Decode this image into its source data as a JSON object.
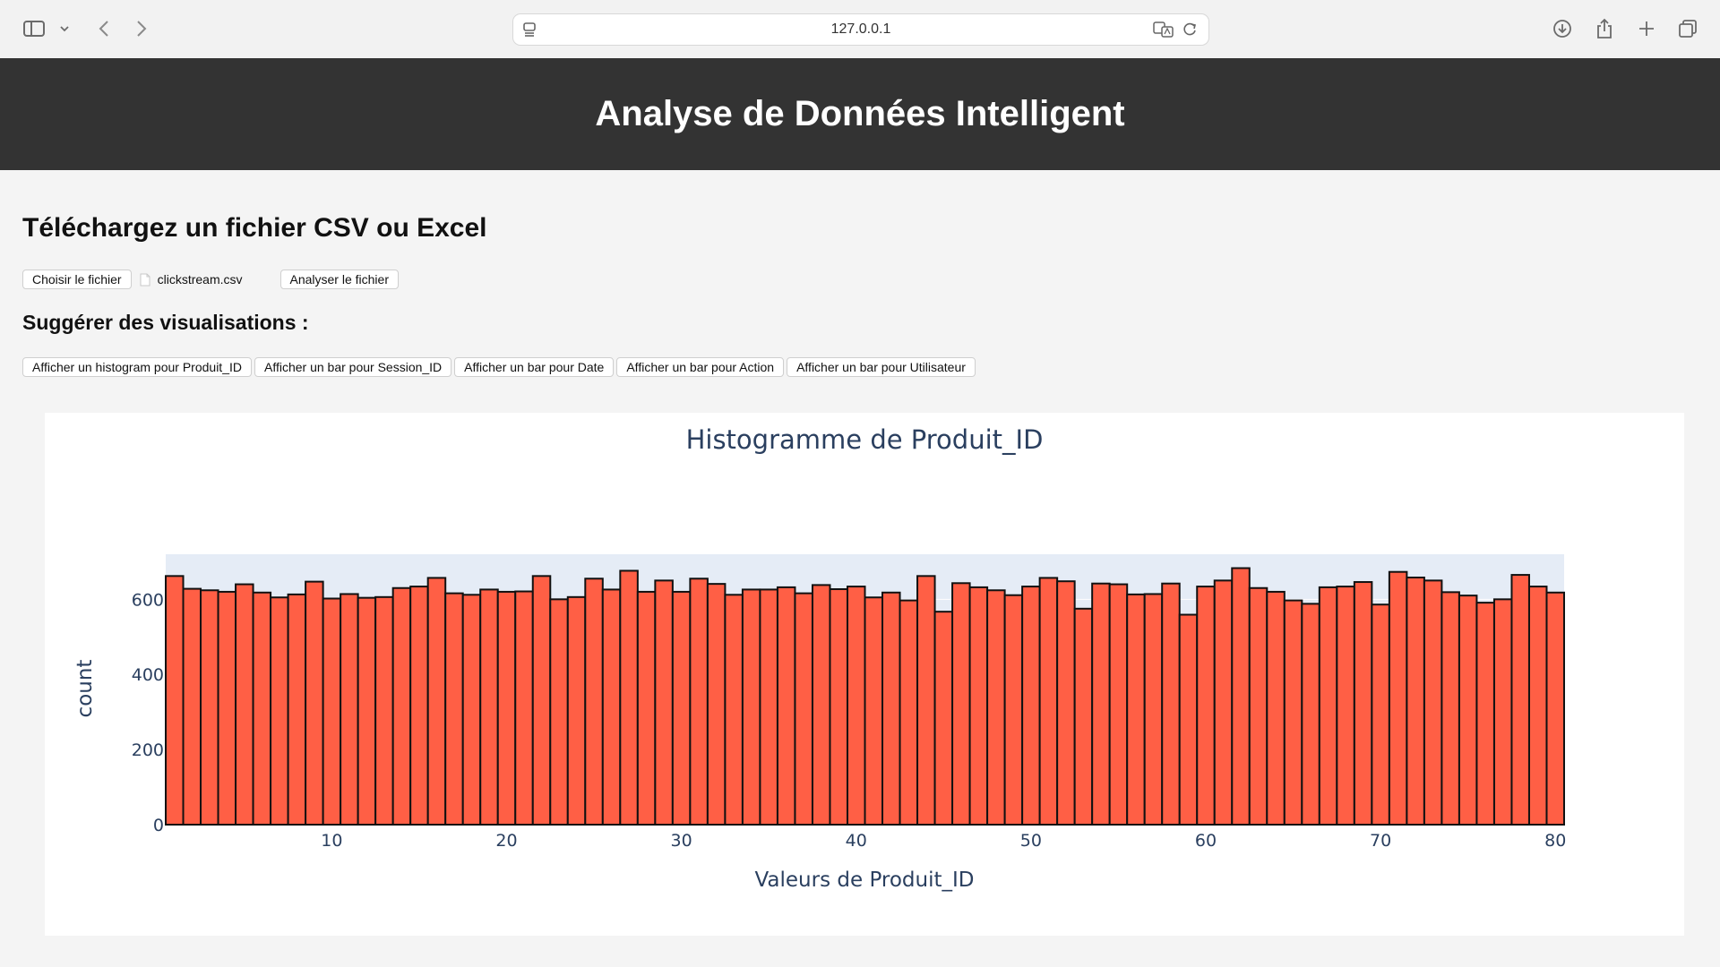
{
  "browser": {
    "url": "127.0.0.1"
  },
  "header": {
    "title": "Analyse de Données Intelligent"
  },
  "upload": {
    "title": "Téléchargez un fichier CSV ou Excel",
    "choose_label": "Choisir le fichier",
    "file_name": "clickstream.csv",
    "analyze_label": "Analyser le fichier"
  },
  "suggestions": {
    "title": "Suggérer des visualisations :",
    "buttons": [
      "Afficher un histogram pour Produit_ID",
      "Afficher un bar pour Session_ID",
      "Afficher un bar pour Date",
      "Afficher un bar pour Action",
      "Afficher un bar pour Utilisateur"
    ]
  },
  "colors": {
    "bar_fill": "#ff5f45",
    "bar_outline": "#111111",
    "plot_bg": "#e5ecf6",
    "header_bg": "#333333"
  },
  "chart_data": {
    "type": "bar",
    "title": "Histogramme de Produit_ID",
    "xlabel": "Valeurs de Produit_ID",
    "ylabel": "count",
    "xlim": [
      0.5,
      80.5
    ],
    "ylim": [
      0,
      720
    ],
    "xticks": [
      10,
      20,
      30,
      40,
      50,
      60,
      70,
      80
    ],
    "yticks": [
      0,
      200,
      400,
      600
    ],
    "categories": [
      1,
      2,
      3,
      4,
      5,
      6,
      7,
      8,
      9,
      10,
      11,
      12,
      13,
      14,
      15,
      16,
      17,
      18,
      19,
      20,
      21,
      22,
      23,
      24,
      25,
      26,
      27,
      28,
      29,
      30,
      31,
      32,
      33,
      34,
      35,
      36,
      37,
      38,
      39,
      40,
      41,
      42,
      43,
      44,
      45,
      46,
      47,
      48,
      49,
      50,
      51,
      52,
      53,
      54,
      55,
      56,
      57,
      58,
      59,
      60,
      61,
      62,
      63,
      64,
      65,
      66,
      67,
      68,
      69,
      70,
      71,
      72,
      73,
      74,
      75,
      76,
      77,
      78,
      79,
      80
    ],
    "values": [
      662,
      628,
      624,
      620,
      640,
      618,
      605,
      613,
      647,
      602,
      614,
      604,
      606,
      630,
      634,
      657,
      616,
      612,
      626,
      620,
      621,
      662,
      600,
      606,
      655,
      626,
      676,
      620,
      650,
      620,
      655,
      641,
      612,
      626,
      626,
      632,
      616,
      638,
      627,
      634,
      605,
      618,
      597,
      662,
      567,
      643,
      632,
      624,
      611,
      634,
      657,
      648,
      575,
      642,
      640,
      613,
      614,
      642,
      559,
      634,
      650,
      683,
      630,
      620,
      597,
      588,
      632,
      634,
      646,
      586,
      673,
      658,
      650,
      619,
      610,
      591,
      600,
      665,
      634,
      618
    ]
  }
}
